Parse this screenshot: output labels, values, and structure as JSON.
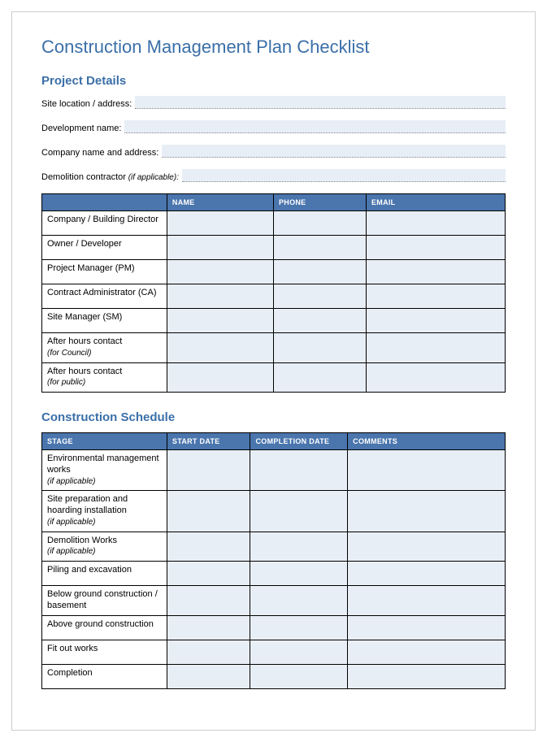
{
  "title": "Construction Management Plan Checklist",
  "section_details": {
    "heading": "Project Details",
    "fields": {
      "site_location": "Site location / address:",
      "development_name": "Development name:",
      "company_name": "Company name and address:",
      "demolition_contractor": "Demolition contractor",
      "demolition_note": " (if applicable):"
    }
  },
  "contacts_table": {
    "headers": {
      "name": "NAME",
      "phone": "PHONE",
      "email": "EMAIL"
    },
    "rows": [
      {
        "label": "Company / Building Director",
        "note": ""
      },
      {
        "label": "Owner / Developer",
        "note": ""
      },
      {
        "label": "Project Manager (PM)",
        "note": ""
      },
      {
        "label": "Contract Administrator (CA)",
        "note": ""
      },
      {
        "label": "Site Manager (SM)",
        "note": ""
      },
      {
        "label": "After hours contact",
        "note": "(for Council)"
      },
      {
        "label": "After hours contact",
        "note": "(for public)"
      }
    ]
  },
  "section_schedule": {
    "heading": "Construction Schedule"
  },
  "schedule_table": {
    "headers": {
      "stage": "STAGE",
      "start": "START DATE",
      "completion": "COMPLETION DATE",
      "comments": "COMMENTS"
    },
    "rows": [
      {
        "label": "Environmental management works",
        "note": "(if applicable)"
      },
      {
        "label": "Site preparation and hoarding installation",
        "note": "(if applicable)"
      },
      {
        "label": "Demolition Works",
        "note": "(if applicable)"
      },
      {
        "label": "Piling and excavation",
        "note": ""
      },
      {
        "label": "Below ground construction / basement",
        "note": ""
      },
      {
        "label": "Above ground construction",
        "note": ""
      },
      {
        "label": "Fit out works",
        "note": ""
      },
      {
        "label": "Completion",
        "note": ""
      }
    ]
  },
  "colors": {
    "accent": "#3b6fa8",
    "table_header": "#4a75ad",
    "cell_fill": "#e8eef6"
  }
}
